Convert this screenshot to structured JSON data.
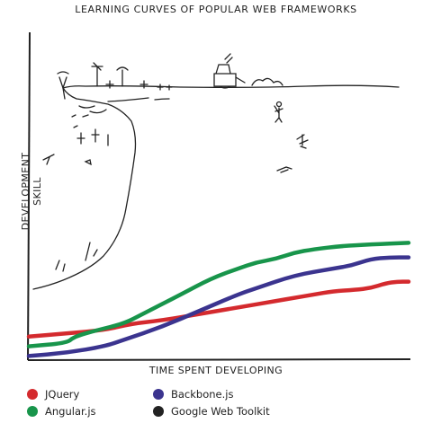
{
  "chart_data": {
    "type": "line",
    "title": "LEARNING CURVES OF POPULAR WEB FRAMEWORKS",
    "xlabel": "TIME SPENT DEVELOPING",
    "ylabel": "DEVELOPMENT SKILL",
    "xlim": [
      0,
      100
    ],
    "ylim": [
      0,
      100
    ],
    "legend_position": "bottom-left",
    "series": [
      {
        "name": "JQuery",
        "color": "#d42a2e",
        "x": [
          0,
          10,
          20,
          27,
          35,
          45,
          55,
          65,
          70,
          75,
          80,
          86,
          90,
          94,
          97,
          100
        ],
        "values": [
          7,
          8,
          9,
          11,
          12,
          14,
          16,
          18,
          19,
          20,
          21,
          21.5,
          22,
          23.5,
          24,
          24
        ]
      },
      {
        "name": "Angular.js",
        "color": "#18954b",
        "x": [
          0,
          10,
          12,
          18,
          25,
          30,
          40,
          48,
          55,
          60,
          65,
          70,
          75,
          82,
          90,
          100
        ],
        "values": [
          4,
          5,
          7,
          9,
          11,
          14,
          20,
          25,
          28,
          30,
          31,
          33,
          34,
          35,
          35.5,
          36
        ]
      },
      {
        "name": "Backbone.js",
        "color": "#3b348f",
        "x": [
          0,
          10,
          20,
          25,
          35,
          45,
          55,
          60,
          70,
          80,
          85,
          90,
          95,
          100
        ],
        "values": [
          1,
          2,
          4,
          6,
          10,
          15,
          20,
          22,
          26,
          28,
          29,
          31,
          31.5,
          31.5
        ]
      },
      {
        "name": "Google Web Toolkit",
        "color": "#222222",
        "x": [
          0,
          5,
          8,
          10,
          20,
          25,
          28,
          30,
          35,
          45,
          60,
          70,
          80,
          90,
          100
        ],
        "values": [
          23,
          28,
          45,
          60,
          78,
          82,
          84,
          90,
          91,
          92,
          92,
          92,
          93,
          93,
          93
        ]
      }
    ]
  },
  "legend": {
    "items": [
      {
        "label": "JQuery",
        "color": "#d42a2e"
      },
      {
        "label": "Backbone.js",
        "color": "#3b348f"
      },
      {
        "label": "Angular.js",
        "color": "#18954b"
      },
      {
        "label": "Google Web Toolkit",
        "color": "#222222"
      }
    ]
  }
}
